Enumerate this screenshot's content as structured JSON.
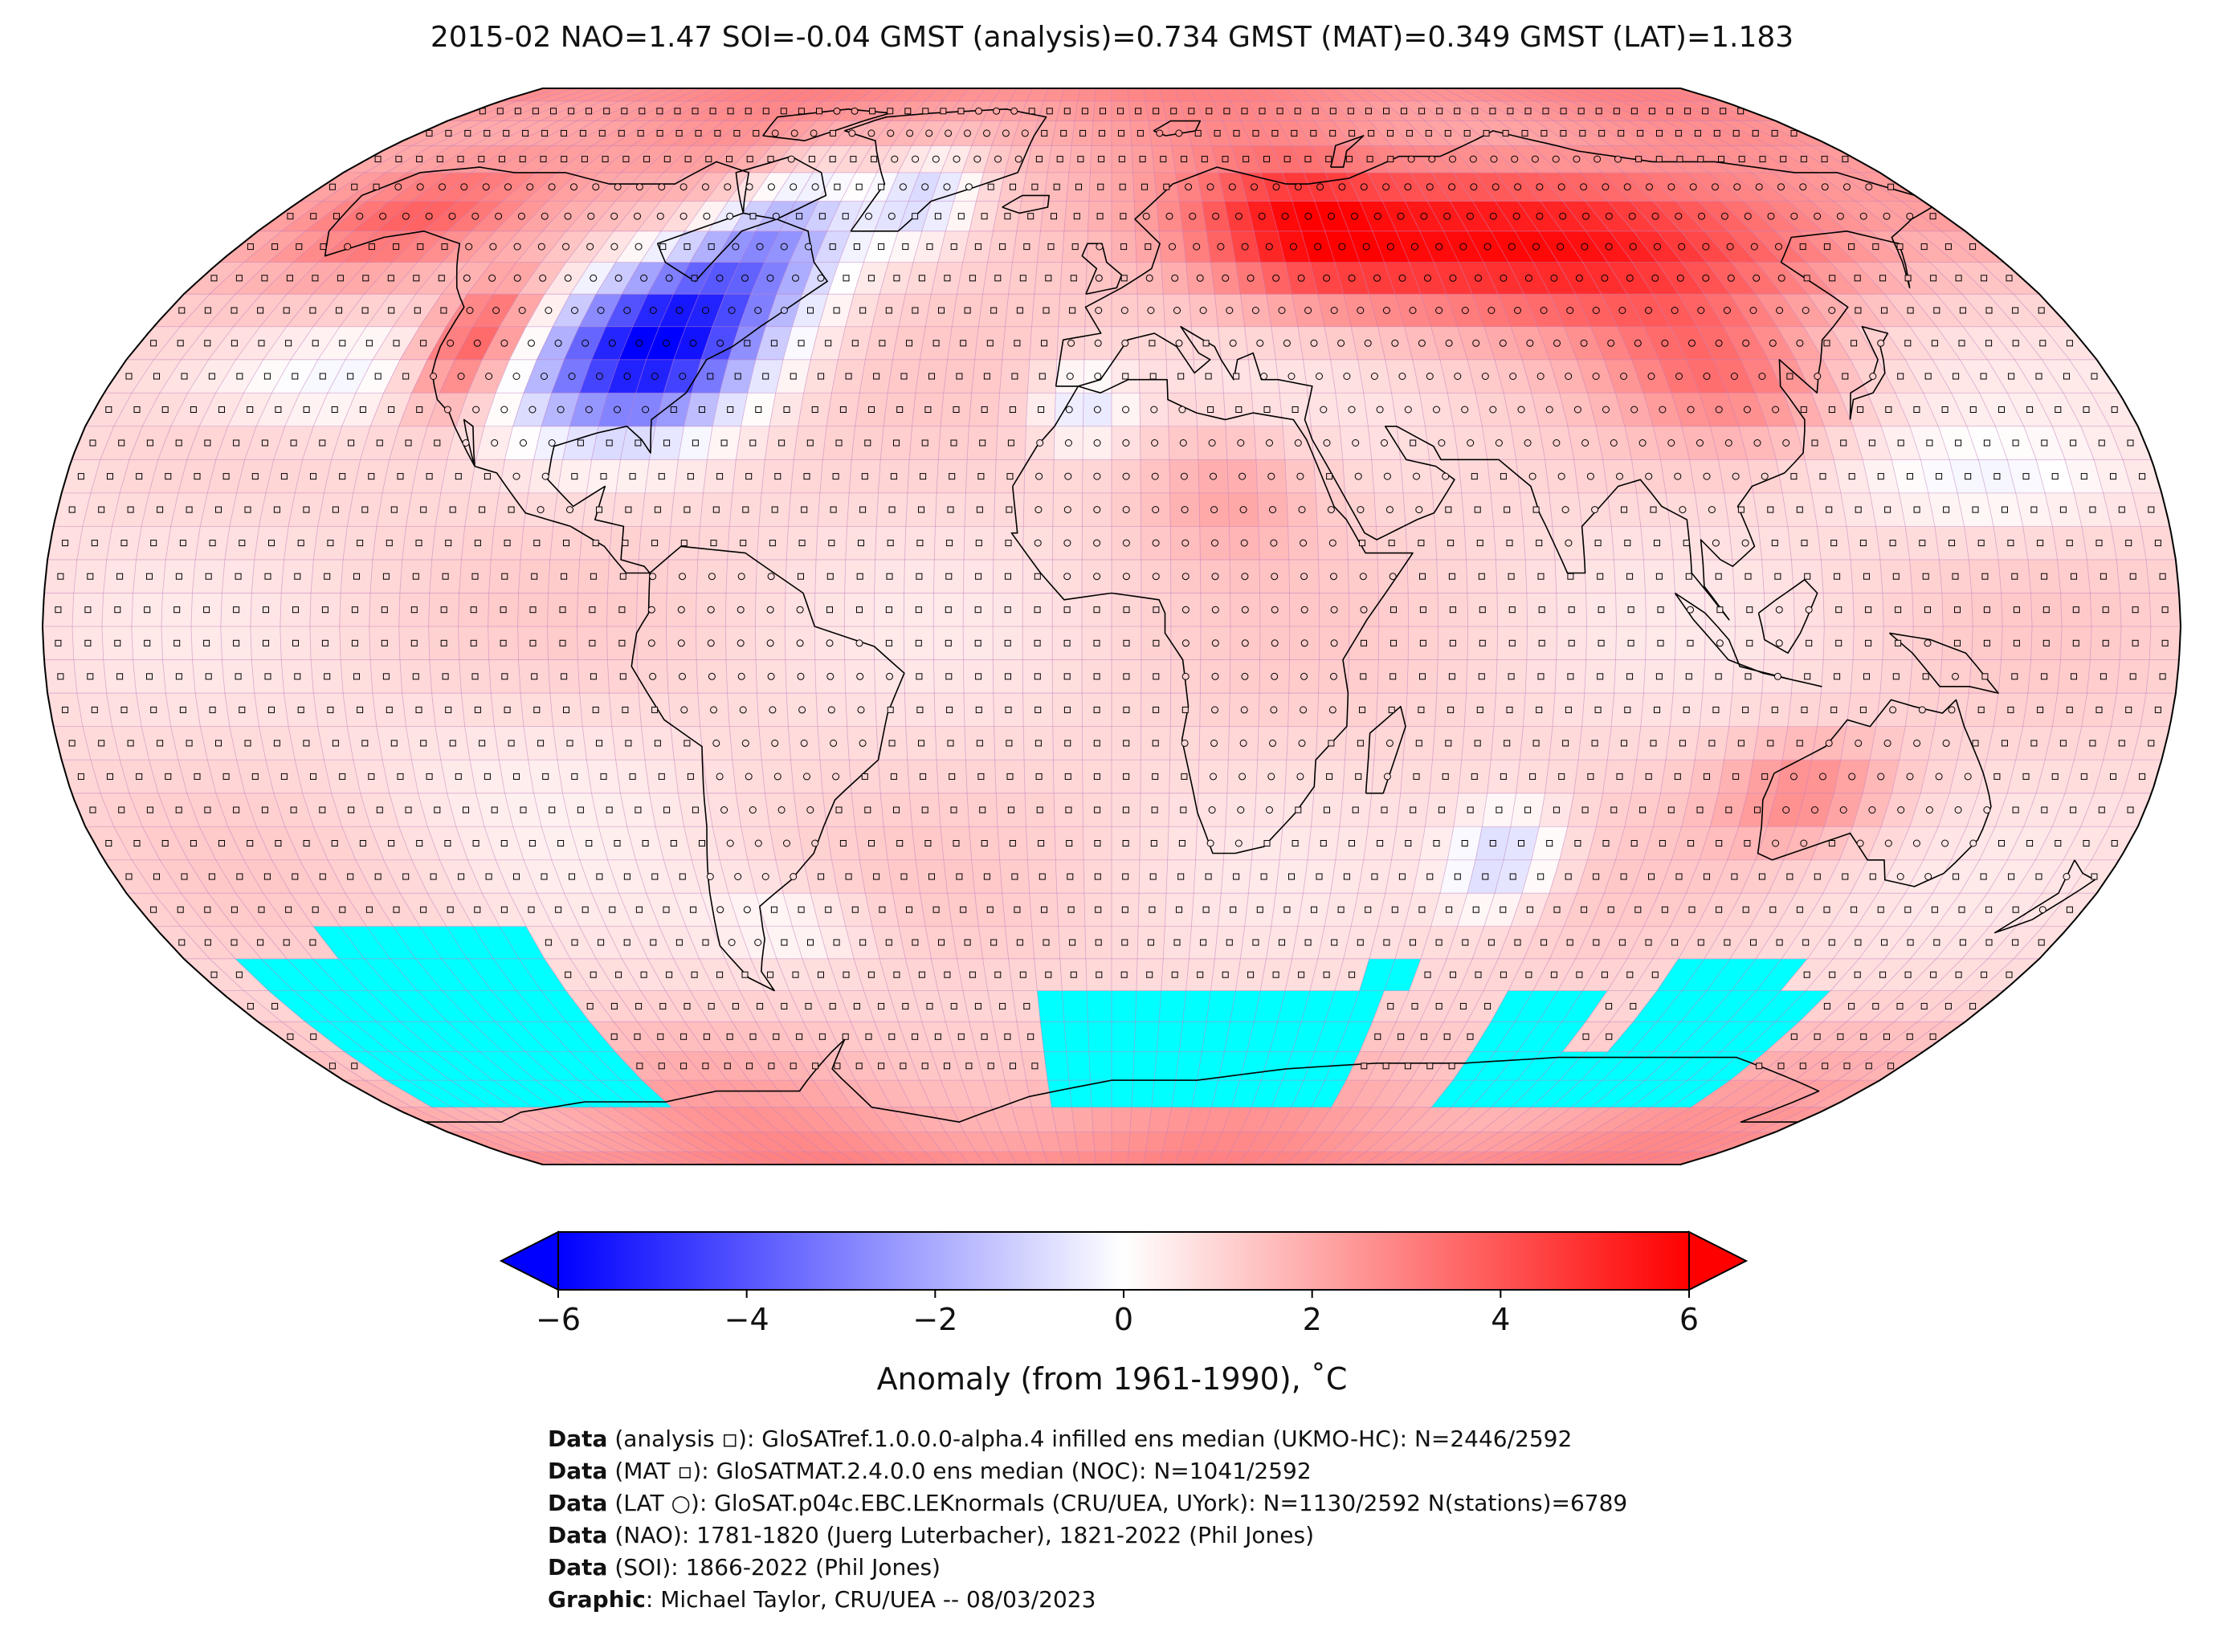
{
  "title": "2015-02 NAO=1.47 SOI=-0.04 GMST (analysis)=0.734 GMST (MAT)=0.349 GMST (LAT)=1.183",
  "colorbar": {
    "label": "Anomaly (from 1961-1990), ˚C",
    "ticks": [
      "−6",
      "−4",
      "−2",
      "0",
      "2",
      "4",
      "6"
    ],
    "tick_values": [
      -6,
      -4,
      -2,
      0,
      2,
      4,
      6
    ],
    "range": [
      -6,
      6
    ],
    "extend": "both",
    "colors": {
      "low": "#0000ff",
      "mid": "#ffffff",
      "high": "#ff0000"
    }
  },
  "map": {
    "projection": "Robinson",
    "grid": "5x5 degree",
    "missing_color": "#00ffff",
    "gridline_color": "#c080c0",
    "coastline_color": "#000000"
  },
  "credits": [
    {
      "bold": "Data",
      "text": " (analysis ◽): GloSATref.1.0.0.0-alpha.4 infilled ens median (UKMO-HC): N=2446/2592"
    },
    {
      "bold": "Data",
      "text": " (MAT ▫): GloSATMAT.2.4.0.0 ens median (NOC): N=1041/2592"
    },
    {
      "bold": "Data",
      "text": " (LAT ○): GloSAT.p04c.EBC.LEKnormals (CRU/UEA, UYork): N=1130/2592 N(stations)=6789"
    },
    {
      "bold": "Data",
      "text": " (NAO): 1781-1820 (Juerg Luterbacher), 1821-2022 (Phil Jones)"
    },
    {
      "bold": "Data",
      "text": " (SOI): 1866-2022 (Phil Jones)"
    },
    {
      "bold": "Graphic",
      "text": ": Michael Taylor, CRU/UEA -- 08/03/2023"
    }
  ]
}
